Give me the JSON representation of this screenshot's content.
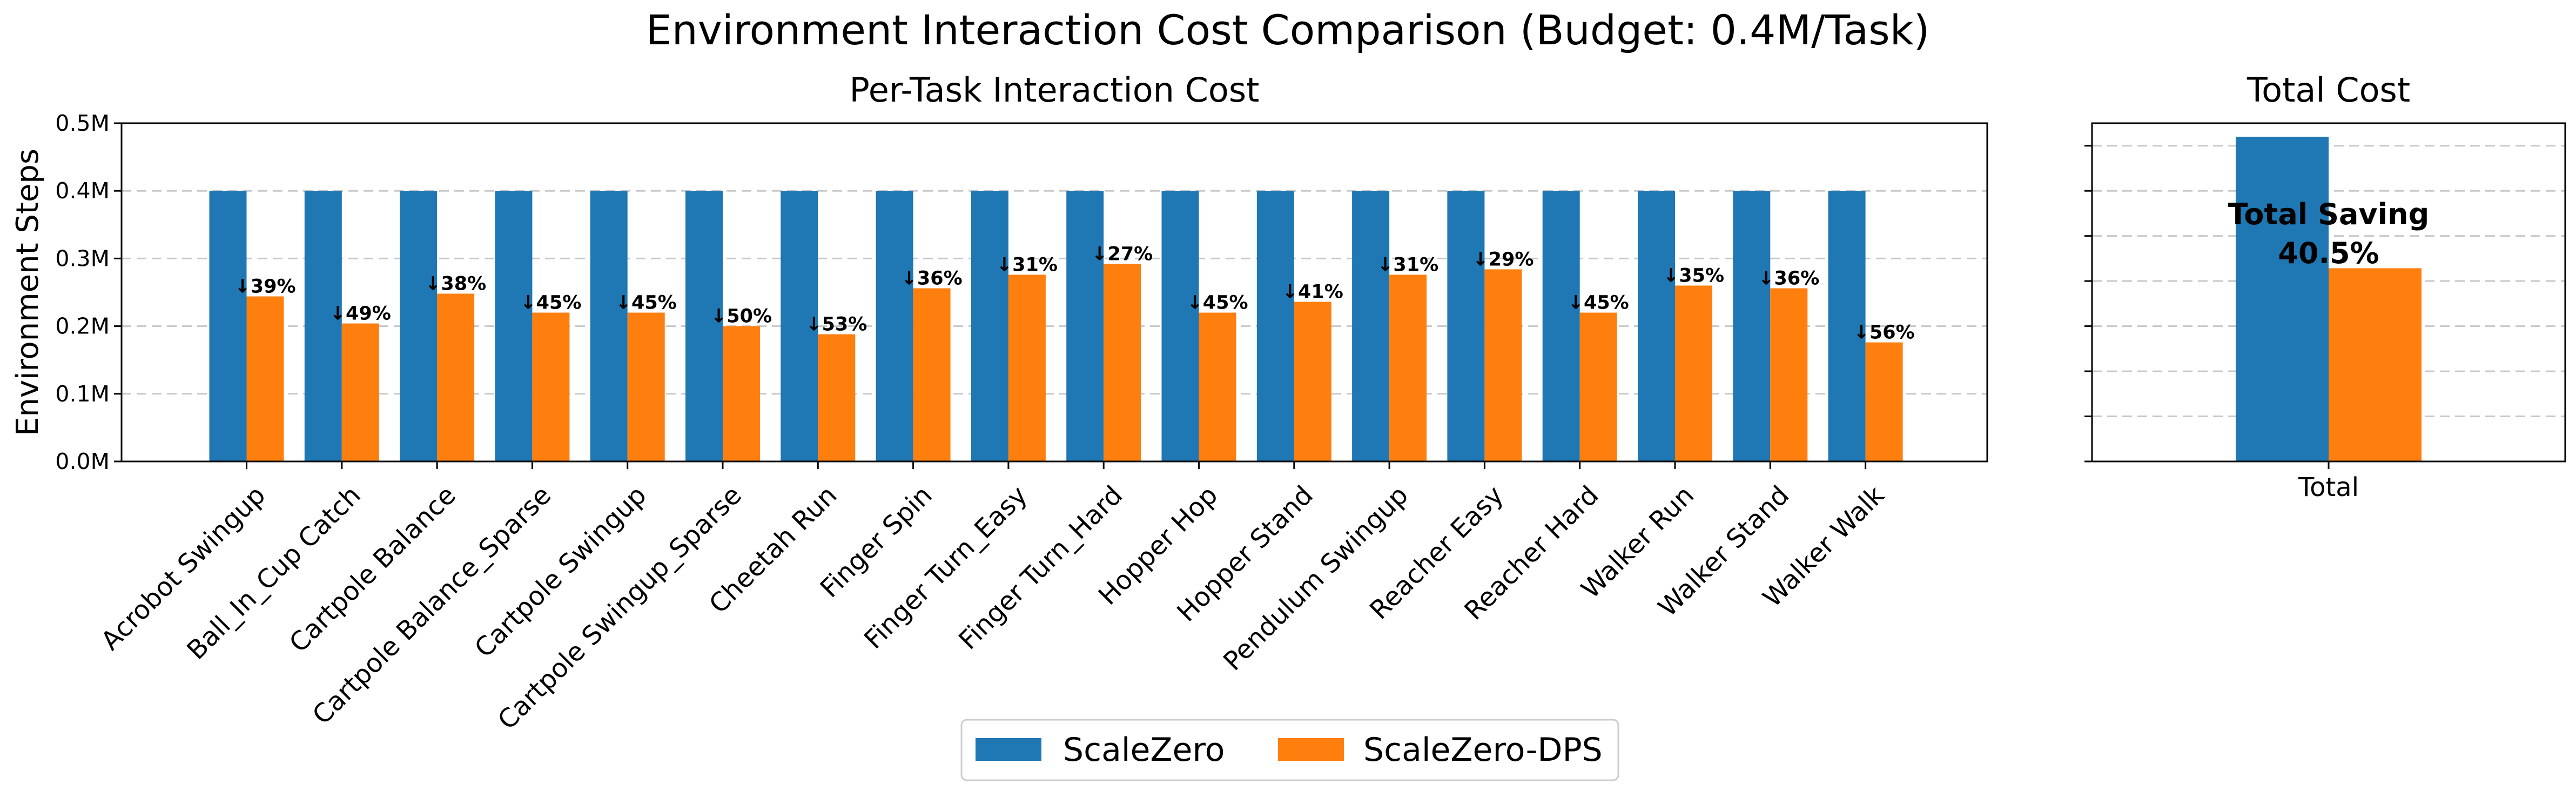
{
  "chart_data": {
    "title": "Environment Interaction Cost Comparison (Budget: 0.4M/Task)",
    "panels": [
      {
        "type": "bar",
        "title": "Per-Task Interaction Cost",
        "ylabel": "Environment Steps",
        "xlabel": "",
        "ylim": [
          0,
          0.5
        ],
        "yticks": [
          0.0,
          0.1,
          0.2,
          0.3,
          0.4,
          0.5
        ],
        "ytick_labels": [
          "0.0M",
          "0.1M",
          "0.2M",
          "0.3M",
          "0.4M",
          "0.5M"
        ],
        "grid": "y-dashed",
        "categories": [
          "Acrobot Swingup",
          "Ball_In_Cup Catch",
          "Cartpole Balance",
          "Cartpole Balance_Sparse",
          "Cartpole Swingup",
          "Cartpole Swingup_Sparse",
          "Cheetah Run",
          "Finger Spin",
          "Finger Turn_Easy",
          "Finger Turn_Hard",
          "Hopper Hop",
          "Hopper Stand",
          "Pendulum Swingup",
          "Reacher Easy",
          "Reacher Hard",
          "Walker Run",
          "Walker Stand",
          "Walker Walk"
        ],
        "series": [
          {
            "name": "ScaleZero",
            "color": "#1f77b4",
            "values": [
              0.4,
              0.4,
              0.4,
              0.4,
              0.4,
              0.4,
              0.4,
              0.4,
              0.4,
              0.4,
              0.4,
              0.4,
              0.4,
              0.4,
              0.4,
              0.4,
              0.4,
              0.4
            ]
          },
          {
            "name": "ScaleZero-DPS",
            "color": "#ff7f0e",
            "values": [
              0.244,
              0.204,
              0.248,
              0.22,
              0.22,
              0.2,
              0.188,
              0.256,
              0.276,
              0.292,
              0.22,
              0.236,
              0.276,
              0.284,
              0.22,
              0.26,
              0.256,
              0.176
            ]
          }
        ],
        "bar_labels": [
          "↓39%",
          "↓49%",
          "↓38%",
          "↓45%",
          "↓45%",
          "↓50%",
          "↓53%",
          "↓36%",
          "↓31%",
          "↓27%",
          "↓45%",
          "↓41%",
          "↓31%",
          "↓29%",
          "↓45%",
          "↓35%",
          "↓36%",
          "↓56%"
        ]
      },
      {
        "type": "bar",
        "title": "Total Cost",
        "ylabel": "",
        "xlabel": "",
        "ylim": [
          0,
          7.5
        ],
        "grid": "y-dashed",
        "categories": [
          "Total"
        ],
        "series": [
          {
            "name": "ScaleZero",
            "color": "#1f77b4",
            "values": [
              7.2
            ]
          },
          {
            "name": "ScaleZero-DPS",
            "color": "#ff7f0e",
            "values": [
              4.284
            ]
          }
        ],
        "annotation": {
          "line1": "Total Saving",
          "line2": "40.5%"
        }
      }
    ],
    "legend": {
      "placement": "bottom-center",
      "entries": [
        "ScaleZero",
        "ScaleZero-DPS"
      ]
    }
  }
}
